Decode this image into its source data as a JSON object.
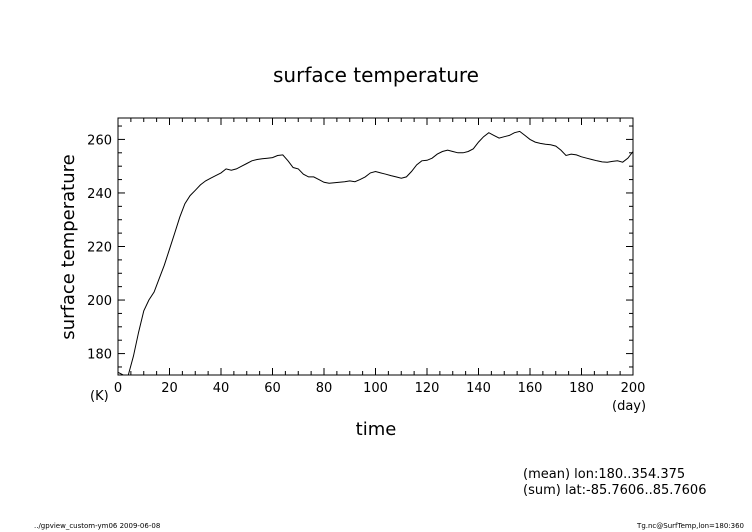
{
  "chart_data": {
    "type": "line",
    "title": "surface temperature",
    "xlabel": "time",
    "ylabel": "surface temperature",
    "x_unit": "(day)",
    "y_unit": "(K)",
    "xlim": [
      0,
      200
    ],
    "ylim": [
      172,
      268
    ],
    "xticks": [
      0,
      20,
      40,
      60,
      80,
      100,
      120,
      140,
      160,
      180,
      200
    ],
    "yticks": [
      180,
      200,
      220,
      240,
      260
    ],
    "grid": false,
    "series": [
      {
        "x": [
          0,
          2,
          4,
          6,
          8,
          10,
          12,
          14,
          16,
          18,
          20,
          22,
          24,
          26,
          28,
          30,
          32,
          34,
          36,
          38,
          40,
          42,
          44,
          46,
          48,
          50,
          52,
          54,
          56,
          58,
          60,
          62,
          64,
          66,
          68,
          70,
          72,
          74,
          76,
          78,
          80,
          82,
          84,
          86,
          88,
          90,
          92,
          94,
          96,
          98,
          100,
          102,
          104,
          106,
          108,
          110,
          112,
          114,
          116,
          118,
          120,
          122,
          124,
          126,
          128,
          130,
          132,
          134,
          136,
          138,
          140,
          142,
          144,
          146,
          148,
          150,
          152,
          154,
          156,
          158,
          160,
          162,
          164,
          166,
          168,
          170,
          172,
          174,
          176,
          178,
          180,
          182,
          184,
          186,
          188,
          190,
          192,
          194,
          196,
          198,
          200
        ],
        "y": [
          173,
          170,
          172,
          179,
          188,
          196,
          200,
          203,
          208,
          213,
          219,
          225,
          231,
          236,
          239,
          241,
          243,
          244.5,
          245.5,
          246.5,
          247.5,
          249,
          248.5,
          249,
          250,
          251,
          252,
          252.5,
          252.8,
          253,
          253.2,
          254,
          254.2,
          252,
          249.5,
          249,
          247,
          246,
          246,
          245,
          244,
          243.6,
          243.8,
          244,
          244.2,
          244.5,
          244.2,
          245,
          246,
          247.5,
          248,
          247.5,
          247,
          246.5,
          246,
          245.5,
          246,
          248,
          250.5,
          252,
          252.2,
          253,
          254.5,
          255.5,
          256,
          255.5,
          255,
          255,
          255.5,
          256.5,
          259,
          261,
          262.5,
          261.5,
          260.5,
          261,
          261.5,
          262.5,
          263,
          261.5,
          260,
          259,
          258.5,
          258.2,
          258,
          257.5,
          256,
          254,
          254.5,
          254.2,
          253.5,
          253,
          252.5,
          252,
          251.6,
          251.5,
          251.8,
          252,
          251.5,
          253,
          255.5
        ]
      }
    ],
    "annotations": [
      "(mean) lon:180..354.375",
      "(sum) lat:-85.7606..85.7606"
    ]
  },
  "footer": {
    "left": "../gpview_custom-ym06  2009-06-08",
    "right": "Tg.nc@SurfTemp,lon=180:360"
  }
}
